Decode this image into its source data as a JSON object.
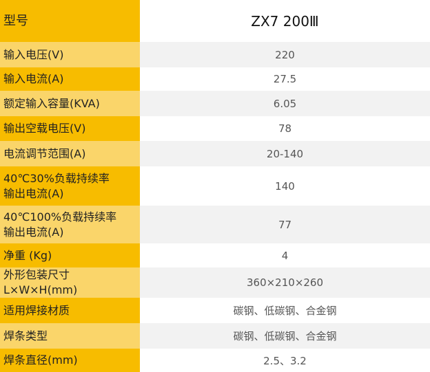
{
  "colors": {
    "label_dark": "#f7bc00",
    "label_light": "#fad56a",
    "value_alt": "#f2f2f2"
  },
  "rows": [
    {
      "label": "型号",
      "value": "ZX7 200Ⅲ"
    },
    {
      "label": "输入电压(V)",
      "value": "220"
    },
    {
      "label": "输入电流(A)",
      "value": "27.5"
    },
    {
      "label": "额定输入容量(KVA)",
      "value": "6.05"
    },
    {
      "label": "输出空载电压(V)",
      "value": "78"
    },
    {
      "label": "电流调节范围(A)",
      "value": "20-140"
    },
    {
      "label": "40℃30%负载持续率",
      "label2": "输出电流(A)",
      "value": "140"
    },
    {
      "label": "40℃100%负载持续率",
      "label2": "输出电流(A)",
      "value": "77"
    },
    {
      "label": "净重 (Kg)",
      "value": "4"
    },
    {
      "label": "外形包装尺寸L×W×H(mm)",
      "value": "360×210×260"
    },
    {
      "label": "适用焊接材质",
      "value": "碳钢、低碳钢、合金钢"
    },
    {
      "label": "焊条类型",
      "value": "碳钢、低碳钢、合金钢"
    },
    {
      "label": "焊条直径(mm)",
      "value": "2.5、3.2"
    }
  ]
}
